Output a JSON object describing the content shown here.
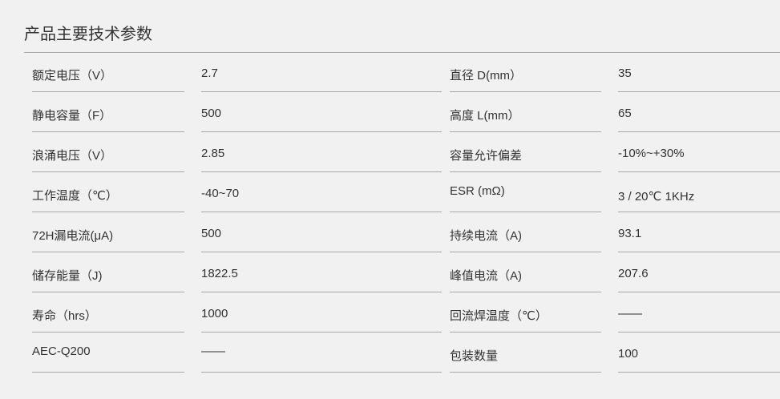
{
  "title": "产品主要技术参数",
  "rows": [
    {
      "label1": "额定电压（V）",
      "value1": "2.7",
      "label2": "直径 D(mm）",
      "value2": "35"
    },
    {
      "label1": "静电容量（F）",
      "value1": "500",
      "label2": "高度 L(mm）",
      "value2": "65"
    },
    {
      "label1": "浪涌电压（V）",
      "value1": "2.85",
      "label2": "容量允许偏差",
      "value2": "-10%~+30%"
    },
    {
      "label1": "工作温度（℃）",
      "value1": "-40~70",
      "label2": "ESR (mΩ)",
      "value2": "3 / 20℃ 1KHz"
    },
    {
      "label1": "72H漏电流(μA)",
      "value1": "500",
      "label2": "持续电流（A)",
      "value2": "93.1"
    },
    {
      "label1": "储存能量（J)",
      "value1": "1822.5",
      "label2": "峰值电流（A)",
      "value2": "207.6"
    },
    {
      "label1": "寿命（hrs）",
      "value1": "1000",
      "label2": "回流焊温度（℃）",
      "value2": "——"
    },
    {
      "label1": "AEC-Q200",
      "value1": "——",
      "label2": "包装数量",
      "value2": "100"
    }
  ]
}
